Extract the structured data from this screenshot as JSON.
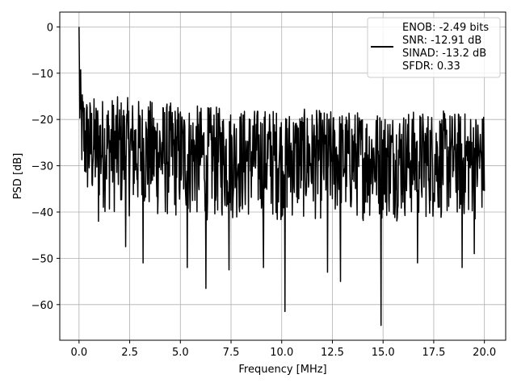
{
  "chart_data": {
    "type": "line",
    "xlabel": "Frequency [MHz]",
    "ylabel": "PSD [dB]",
    "xlim": [
      -0.95,
      21.05
    ],
    "ylim": [
      -67.7,
      3.2
    ],
    "xticks": [
      0.0,
      2.5,
      5.0,
      7.5,
      10.0,
      12.5,
      15.0,
      17.5,
      20.0
    ],
    "xtick_labels": [
      "0.0",
      "2.5",
      "5.0",
      "7.5",
      "10.0",
      "12.5",
      "15.0",
      "17.5",
      "20.0"
    ],
    "yticks": [
      0,
      -10,
      -20,
      -30,
      -40,
      -50,
      -60
    ],
    "ytick_labels": [
      "0",
      "−10",
      "−20",
      "−30",
      "−40",
      "−50",
      "−60"
    ],
    "grid": true,
    "legend_position": "top-right",
    "series": [
      {
        "name": "ENOB: -2.49 bits\nSNR: -12.91 dB\nSINAD: -13.2 dB\nSFDR: 0.33",
        "color": "#000000",
        "x_range": [
          0.0,
          20.0
        ],
        "approx_points": 1000,
        "peak": {
          "x": 0.0,
          "y": 0.0
        },
        "spectrum_profile": {
          "x": [
            0.0,
            0.05,
            0.1,
            0.3,
            0.6,
            1.0,
            2.0,
            4.0,
            6.0,
            8.0,
            10.0,
            12.5,
            15.0,
            17.5,
            20.0
          ],
          "upper": [
            0.0,
            -5.0,
            -12.0,
            -14.0,
            -15.0,
            -15.0,
            -15.0,
            -16.0,
            -17.0,
            -17.5,
            -17.5,
            -18.0,
            -18.0,
            -18.0,
            -18.5
          ],
          "lower": [
            -28.0,
            -30.0,
            -33.0,
            -38.0,
            -40.0,
            -40.0,
            -41.0,
            -42.0,
            -42.0,
            -42.0,
            -42.0,
            -42.0,
            -42.0,
            -42.0,
            -42.0
          ]
        },
        "notable_dips": [
          {
            "x": 0.95,
            "y": -42.0
          },
          {
            "x": 2.3,
            "y": -47.5
          },
          {
            "x": 3.15,
            "y": -51.0
          },
          {
            "x": 5.35,
            "y": -52.0
          },
          {
            "x": 6.25,
            "y": -56.5
          },
          {
            "x": 7.4,
            "y": -52.5
          },
          {
            "x": 9.1,
            "y": -52.0
          },
          {
            "x": 10.15,
            "y": -61.5
          },
          {
            "x": 12.25,
            "y": -53.0
          },
          {
            "x": 12.9,
            "y": -55.0
          },
          {
            "x": 14.9,
            "y": -64.5
          },
          {
            "x": 16.7,
            "y": -51.0
          },
          {
            "x": 18.9,
            "y": -52.0
          },
          {
            "x": 19.5,
            "y": -49.0
          }
        ]
      }
    ]
  }
}
